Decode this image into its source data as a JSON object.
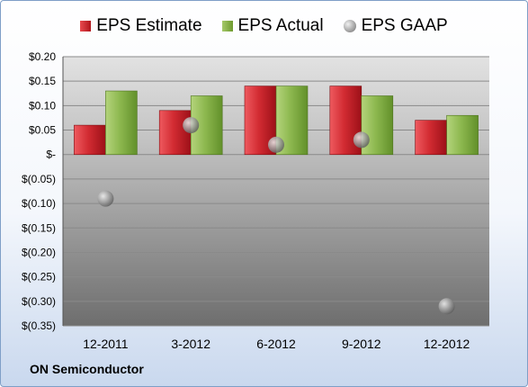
{
  "company": "ON Semiconductor",
  "colors": {
    "estimate": "#c4232b",
    "actual": "#86b24a",
    "gaap": "#9a9a9a"
  },
  "chart_data": {
    "type": "bar",
    "categories": [
      "12-2011",
      "3-2012",
      "6-2012",
      "9-2012",
      "12-2012"
    ],
    "series": [
      {
        "name": "EPS Estimate",
        "values": [
          0.06,
          0.09,
          0.14,
          0.14,
          0.07
        ]
      },
      {
        "name": "EPS Actual",
        "values": [
          0.13,
          0.12,
          0.14,
          0.12,
          0.08
        ]
      },
      {
        "name": "EPS GAAP",
        "type": "scatter",
        "values": [
          -0.09,
          0.06,
          0.02,
          0.03,
          -0.31
        ]
      }
    ],
    "ylim": [
      -0.35,
      0.2
    ],
    "yticks": [
      0.2,
      0.15,
      0.1,
      0.05,
      0,
      -0.05,
      -0.1,
      -0.15,
      -0.2,
      -0.25,
      -0.3,
      -0.35
    ],
    "ytick_labels": [
      "$0.20",
      "$0.15",
      "$0.10",
      "$0.05",
      "$-",
      "$(0.05)",
      "$(0.10)",
      "$(0.15)",
      "$(0.20)",
      "$(0.25)",
      "$(0.30)",
      "$(0.35)"
    ],
    "legend_position": "top",
    "grid": true
  }
}
